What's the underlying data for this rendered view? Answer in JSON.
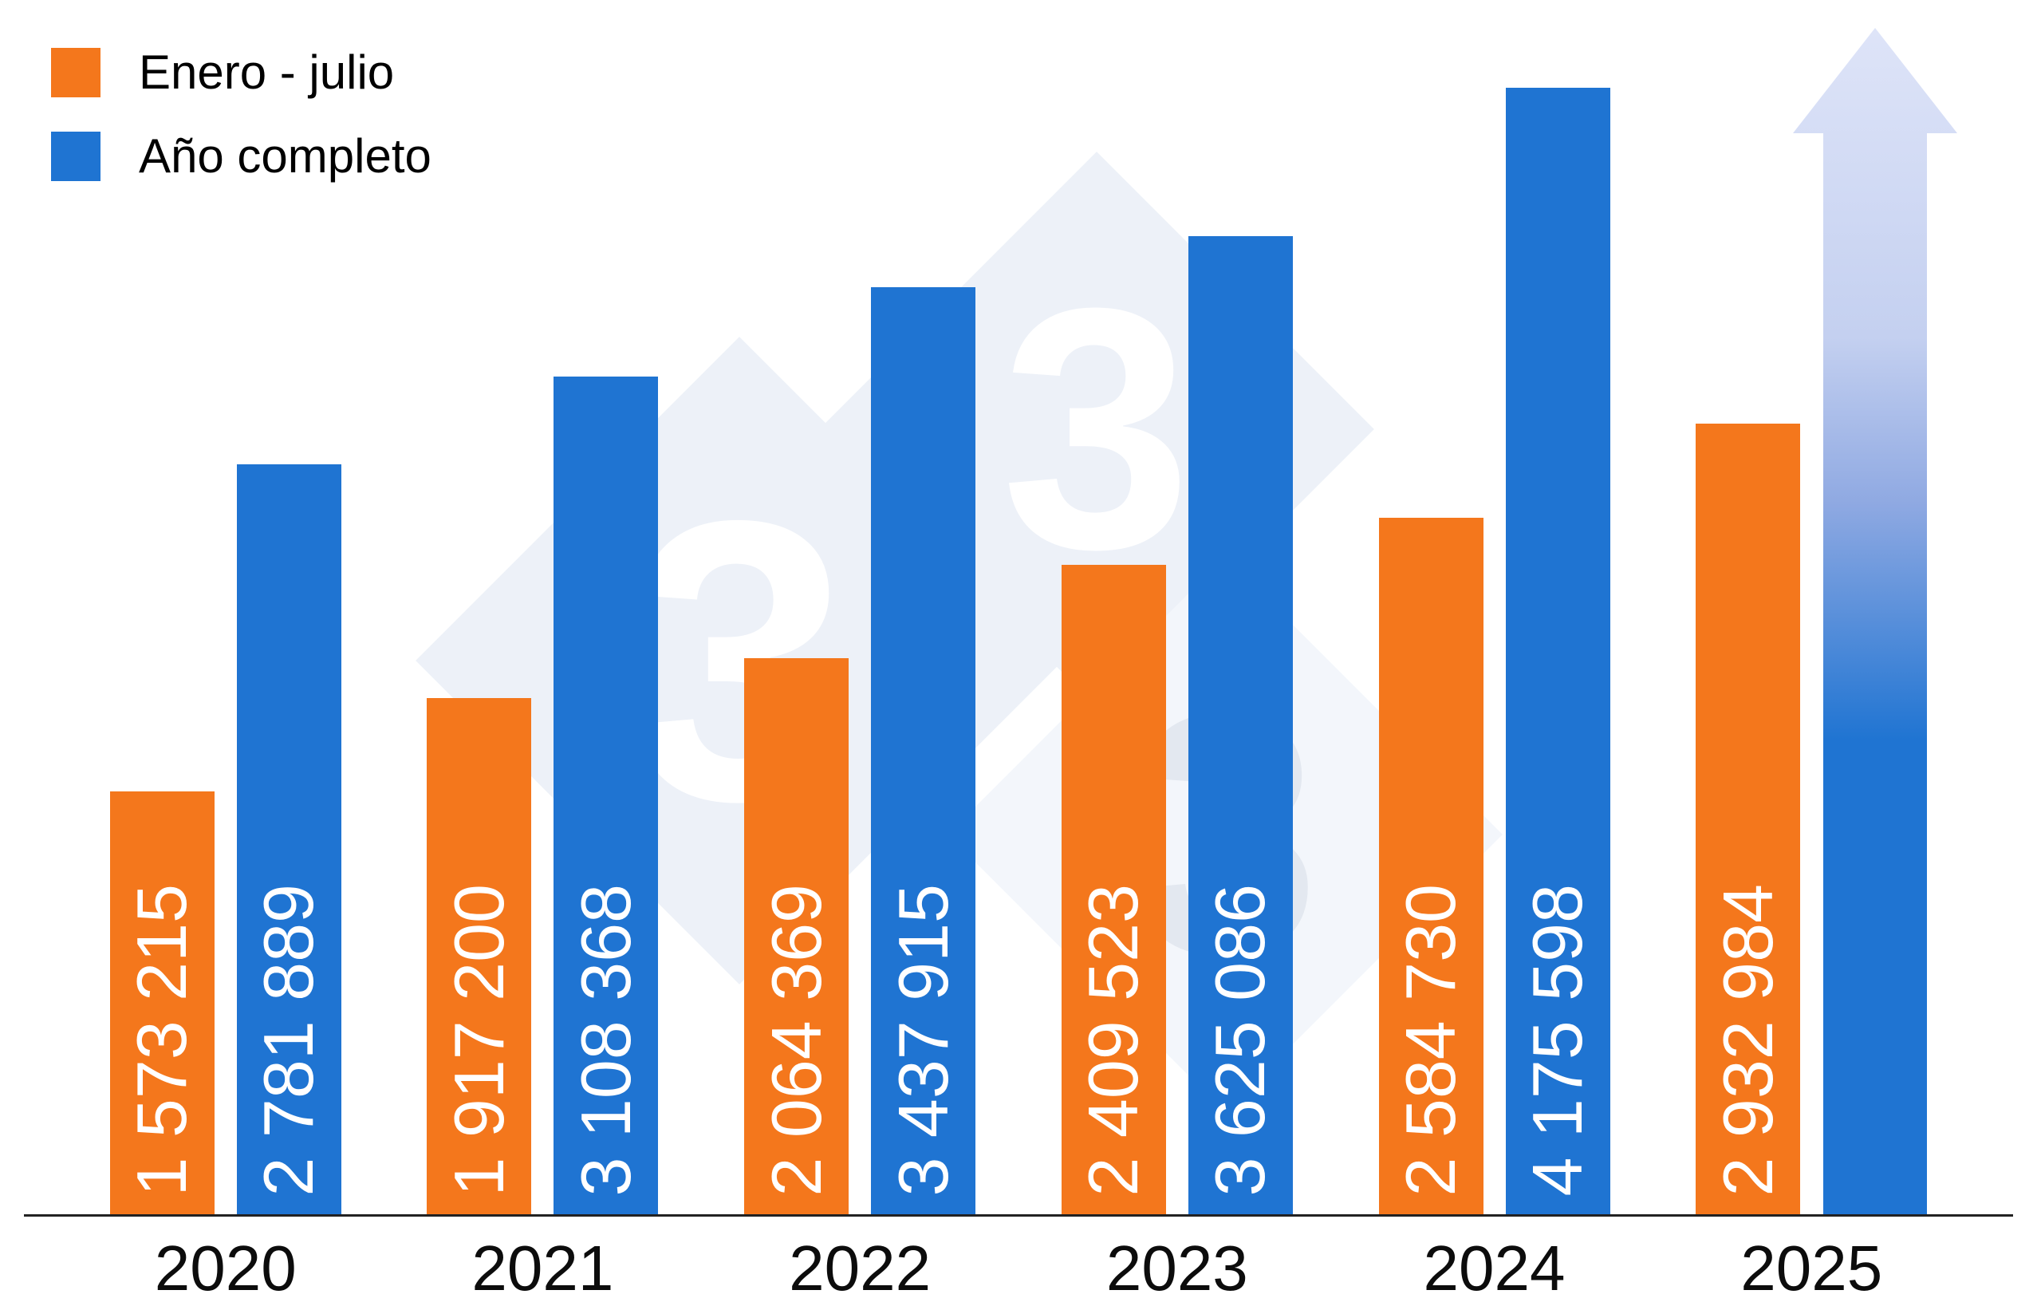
{
  "legend": {
    "items": [
      {
        "label": "Enero - julio",
        "color": "#F4771C"
      },
      {
        "label": "Año completo",
        "color": "#1F74D2"
      }
    ]
  },
  "watermark": {
    "digits": [
      "3",
      "3",
      "3"
    ]
  },
  "chart_data": {
    "type": "bar",
    "title": "",
    "xlabel": "",
    "ylabel": "",
    "categories": [
      "2020",
      "2021",
      "2022",
      "2023",
      "2024",
      "2025"
    ],
    "series": [
      {
        "name": "Enero - julio",
        "color": "#F4771C",
        "values": [
          1573215,
          1917200,
          2064369,
          2409523,
          2584730,
          2932984
        ],
        "labels": [
          "1 573 215",
          "1 917 200",
          "2 064 369",
          "2 409 523",
          "2 584 730",
          "2 932 984"
        ]
      },
      {
        "name": "Año completo",
        "color": "#1F74D2",
        "values": [
          2781889,
          3108368,
          3437915,
          3625086,
          4175598,
          null
        ],
        "labels": [
          "2 781 889",
          "3 108 368",
          "3 437 915",
          "3 625 086",
          "4 175 598",
          null
        ]
      }
    ],
    "ylim": [
      0,
      4500000
    ],
    "grid": false,
    "legend_position": "top-left",
    "value_label_orientation": "vertical",
    "projection": {
      "category": "2025",
      "series": "Año completo",
      "style": "fading-arrow",
      "colors": {
        "bottom": "#1F74D2",
        "top": "#DEE4F8"
      }
    }
  }
}
